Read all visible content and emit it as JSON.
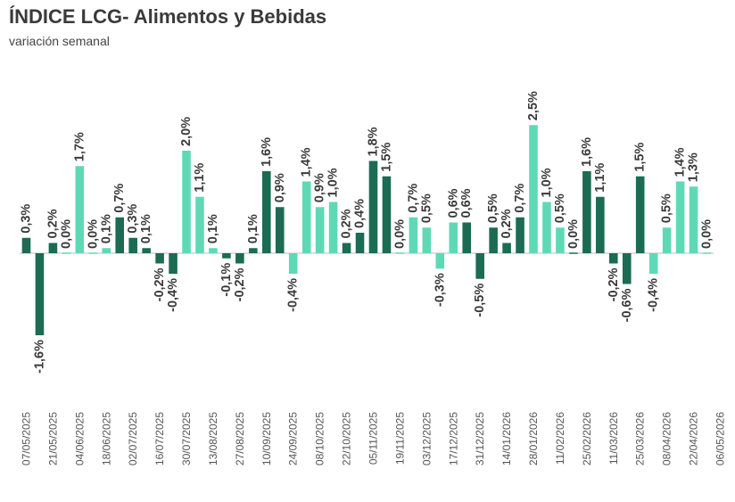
{
  "chart_data": {
    "type": "bar",
    "title": "ÍNDICE LCG- Alimentos y Bebidas",
    "subtitle": "variación semanal",
    "colors": {
      "dark": "#1c6b53",
      "light": "#5fd9b5",
      "axis": "#bdbdbd"
    },
    "x_tick_labels": [
      "07/05/2025",
      "21/05/2025",
      "04/06/2025",
      "18/06/2025",
      "02/07/2025",
      "16/07/2025",
      "30/07/2025",
      "13/08/2025",
      "27/08/2025",
      "10/09/2025",
      "24/09/2025",
      "08/10/2025",
      "22/10/2025",
      "05/11/2025",
      "19/11/2025",
      "03/12/2025",
      "17/12/2025",
      "31/12/2025",
      "14/01/2026",
      "28/01/2026",
      "11/02/2026",
      "25/02/2026",
      "11/03/2026",
      "25/03/2026",
      "08/04/2026",
      "22/04/2026",
      "06/05/2026"
    ],
    "values": [
      0.3,
      -1.6,
      0.2,
      0.0,
      1.7,
      0.0,
      0.1,
      0.7,
      0.3,
      0.1,
      -0.2,
      -0.4,
      2.0,
      1.1,
      0.1,
      -0.1,
      -0.2,
      0.1,
      1.6,
      0.9,
      -0.4,
      1.4,
      0.9,
      1.0,
      0.2,
      0.4,
      1.8,
      1.5,
      0.0,
      0.7,
      0.5,
      -0.3,
      0.6,
      0.6,
      -0.5,
      0.5,
      0.2,
      0.7,
      2.5,
      1.0,
      0.5,
      0.0,
      1.6,
      1.1,
      -0.2,
      -0.6,
      1.5,
      -0.4,
      0.5,
      1.4,
      1.3,
      0.0
    ],
    "data_labels": [
      "0,3%",
      "-1,6%",
      "0,2%",
      "0,0%",
      "1,7%",
      "0,0%",
      "0,1%",
      "0,7%",
      "0,3%",
      "0,1%",
      "-0,2%",
      "-0,4%",
      "2,0%",
      "1,1%",
      "0,1%",
      "-0,1%",
      "-0,2%",
      "0,1%",
      "1,6%",
      "0,9%",
      "-0,4%",
      "1,4%",
      "0,9%",
      "1,0%",
      "0,2%",
      "0,4%",
      "1,8%",
      "1,5%",
      "0,0%",
      "0,7%",
      "0,5%",
      "-0,3%",
      "0,6%",
      "0,6%",
      "-0,5%",
      "0,5%",
      "0,2%",
      "0,7%",
      "2,5%",
      "1,0%",
      "0,5%",
      "0,0%",
      "1,6%",
      "1,1%",
      "-0,2%",
      "-0,6%",
      "1,5%",
      "-0,4%",
      "0,5%",
      "1,4%",
      "1,3%",
      "0,0%"
    ],
    "bar_colors": [
      "dark",
      "dark",
      "dark",
      "light",
      "light",
      "light",
      "light",
      "dark",
      "dark",
      "dark",
      "dark",
      "dark",
      "light",
      "light",
      "light",
      "dark",
      "dark",
      "dark",
      "dark",
      "dark",
      "light",
      "light",
      "light",
      "light",
      "dark",
      "dark",
      "dark",
      "dark",
      "light",
      "light",
      "light",
      "light",
      "light",
      "dark",
      "dark",
      "dark",
      "dark",
      "dark",
      "light",
      "light",
      "light",
      "dark",
      "dark",
      "dark",
      "dark",
      "dark",
      "dark",
      "light",
      "light",
      "light",
      "light",
      "light"
    ],
    "ylim": [
      -1.8,
      2.6
    ]
  }
}
